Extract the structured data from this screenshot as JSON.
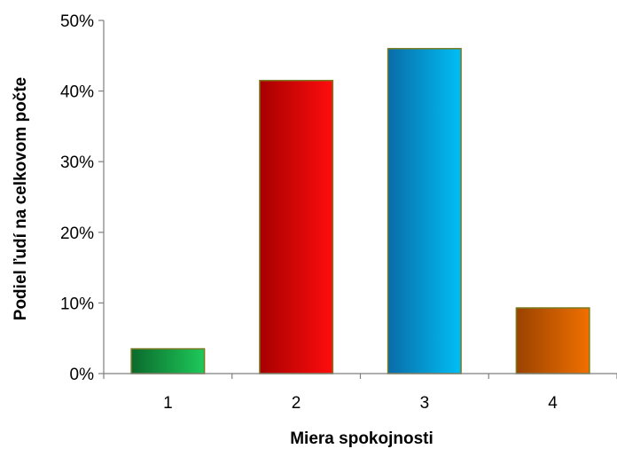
{
  "chart_data": {
    "type": "bar",
    "categories": [
      "1",
      "2",
      "3",
      "4"
    ],
    "values": [
      3.5,
      41.5,
      46.0,
      9.3
    ],
    "title": "",
    "xlabel": "Miera spokojnosti",
    "ylabel": "Podiel ľudí na celkovom počte",
    "ylim": [
      0,
      50
    ],
    "yticks": [
      "0%",
      "10%",
      "20%",
      "30%",
      "40%",
      "50%"
    ],
    "grid": false,
    "legend": "none",
    "bar_colors": [
      {
        "light": "#1ec95a",
        "dark": "#0b6a2c"
      },
      {
        "light": "#ff0d0d",
        "dark": "#a60000"
      },
      {
        "light": "#00bff5",
        "dark": "#0a6ca8"
      },
      {
        "light": "#f07000",
        "dark": "#9a4200"
      }
    ]
  }
}
